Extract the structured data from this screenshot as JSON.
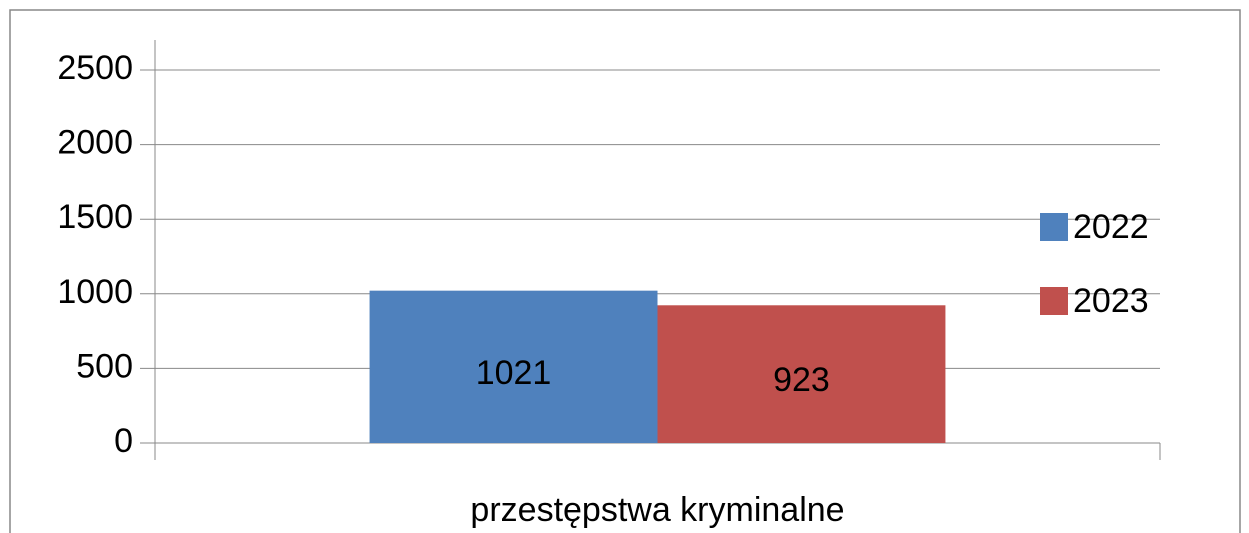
{
  "chart_data": {
    "type": "bar",
    "categories": [
      "przestępstwa kryminalne"
    ],
    "series": [
      {
        "name": "2022",
        "color": "#4f81bd",
        "values": [
          1021
        ]
      },
      {
        "name": "2023",
        "color": "#c0504d",
        "values": [
          923
        ]
      }
    ],
    "ylim": [
      0,
      2500
    ],
    "yticks": [
      0,
      500,
      1000,
      1500,
      2000,
      2500
    ],
    "grid": true,
    "legend": "right"
  }
}
